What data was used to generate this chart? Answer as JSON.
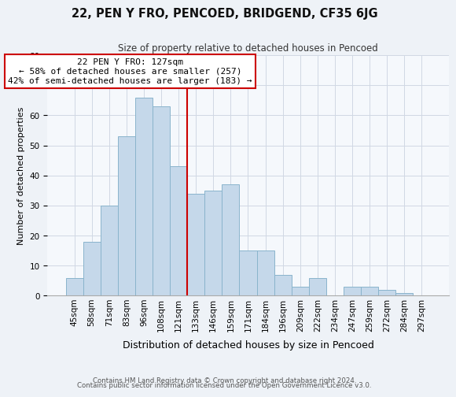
{
  "title": "22, PEN Y FRO, PENCOED, BRIDGEND, CF35 6JG",
  "subtitle": "Size of property relative to detached houses in Pencoed",
  "xlabel": "Distribution of detached houses by size in Pencoed",
  "ylabel": "Number of detached properties",
  "bar_color": "#c5d8ea",
  "bar_edge_color": "#8ab4cc",
  "categories": [
    "45sqm",
    "58sqm",
    "71sqm",
    "83sqm",
    "96sqm",
    "108sqm",
    "121sqm",
    "133sqm",
    "146sqm",
    "159sqm",
    "171sqm",
    "184sqm",
    "196sqm",
    "209sqm",
    "222sqm",
    "234sqm",
    "247sqm",
    "259sqm",
    "272sqm",
    "284sqm",
    "297sqm"
  ],
  "values": [
    6,
    18,
    30,
    53,
    66,
    63,
    43,
    34,
    35,
    37,
    15,
    15,
    7,
    3,
    6,
    0,
    3,
    3,
    2,
    1,
    0
  ],
  "property_label": "22 PEN Y FRO: 127sqm",
  "annotation_line1": "← 58% of detached houses are smaller (257)",
  "annotation_line2": "42% of semi-detached houses are larger (183) →",
  "vline_x": 6.5,
  "vline_color": "#cc0000",
  "annotation_box_edge": "#cc0000",
  "ylim": [
    0,
    80
  ],
  "yticks": [
    0,
    10,
    20,
    30,
    40,
    50,
    60,
    70,
    80
  ],
  "footnote1": "Contains HM Land Registry data © Crown copyright and database right 2024.",
  "footnote2": "Contains public sector information licensed under the Open Government Licence v3.0.",
  "bg_color": "#eef2f7",
  "plot_bg_color": "#f5f8fc",
  "grid_color": "#d0d8e4",
  "title_fontsize": 10.5,
  "subtitle_fontsize": 8.5,
  "ylabel_fontsize": 8,
  "xlabel_fontsize": 9,
  "tick_fontsize": 7.5,
  "footnote_fontsize": 6.2
}
